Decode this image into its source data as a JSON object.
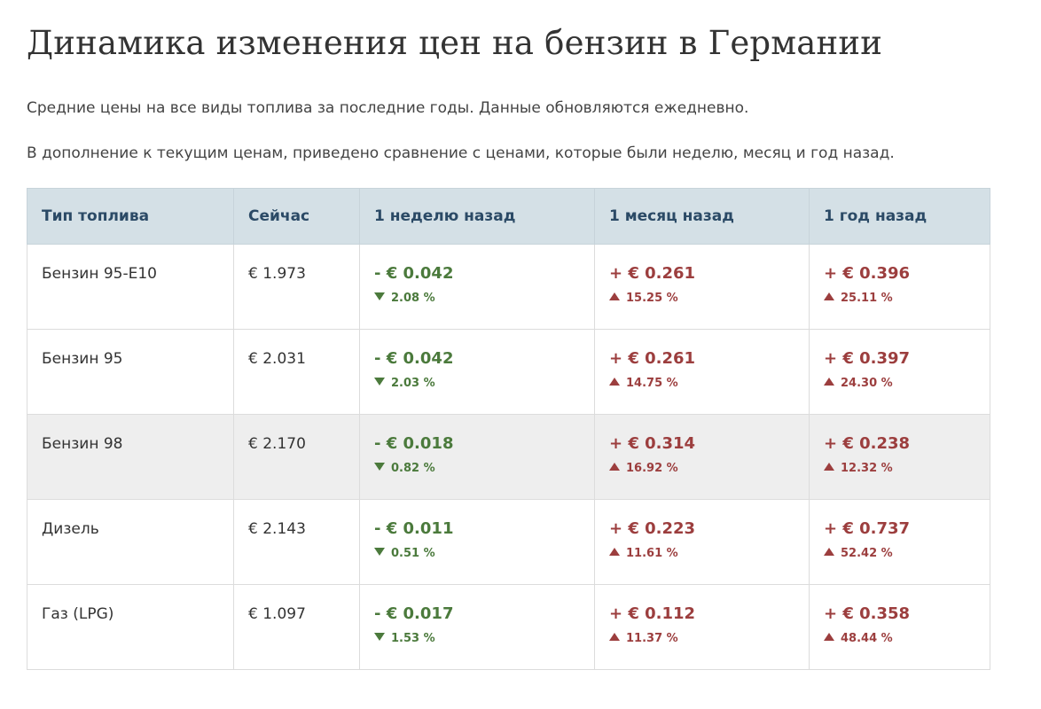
{
  "page": {
    "title": "Динамика изменения цен на бензин в Германии",
    "intro_1": "Средние цены на все виды топлива за последние годы. Данные обновляются ежедневно.",
    "intro_2": "В дополнение к текущим ценам, приведено сравнение с ценами, которые были неделю, месяц и год назад."
  },
  "colors": {
    "header_bg": "#d4e0e6",
    "header_text": "#2b4a66",
    "decrease": "#4b7a3c",
    "increase": "#9c3e3e",
    "highlight_row": "#eeeeee"
  },
  "table": {
    "headers": [
      "Тип топлива",
      "Сейчас",
      "1 неделю назад",
      "1 месяц назад",
      "1 год назад"
    ],
    "rows": [
      {
        "fuel": "Бензин 95-E10",
        "now": "€ 1.973",
        "week": {
          "change": "- € 0.042",
          "pct": "2.08 %",
          "dir": "down"
        },
        "month": {
          "change": "+ € 0.261",
          "pct": "15.25 %",
          "dir": "up"
        },
        "year": {
          "change": "+ € 0.396",
          "pct": "25.11 %",
          "dir": "up"
        }
      },
      {
        "fuel": "Бензин 95",
        "now": "€ 2.031",
        "week": {
          "change": "- € 0.042",
          "pct": "2.03 %",
          "dir": "down"
        },
        "month": {
          "change": "+ € 0.261",
          "pct": "14.75 %",
          "dir": "up"
        },
        "year": {
          "change": "+ € 0.397",
          "pct": "24.30 %",
          "dir": "up"
        }
      },
      {
        "fuel": "Бензин 98",
        "now": "€ 2.170",
        "week": {
          "change": "- € 0.018",
          "pct": "0.82 %",
          "dir": "down"
        },
        "month": {
          "change": "+ € 0.314",
          "pct": "16.92 %",
          "dir": "up"
        },
        "year": {
          "change": "+ € 0.238",
          "pct": "12.32 %",
          "dir": "up"
        }
      },
      {
        "fuel": "Дизель",
        "now": "€ 2.143",
        "week": {
          "change": "- € 0.011",
          "pct": "0.51 %",
          "dir": "down"
        },
        "month": {
          "change": "+ € 0.223",
          "pct": "11.61 %",
          "dir": "up"
        },
        "year": {
          "change": "+ € 0.737",
          "pct": "52.42 %",
          "dir": "up"
        }
      },
      {
        "fuel": "Газ (LPG)",
        "now": "€ 1.097",
        "week": {
          "change": "- € 0.017",
          "pct": "1.53 %",
          "dir": "down"
        },
        "month": {
          "change": "+ € 0.112",
          "pct": "11.37 %",
          "dir": "up"
        },
        "year": {
          "change": "+ € 0.358",
          "pct": "48.44 %",
          "dir": "up"
        }
      }
    ]
  }
}
